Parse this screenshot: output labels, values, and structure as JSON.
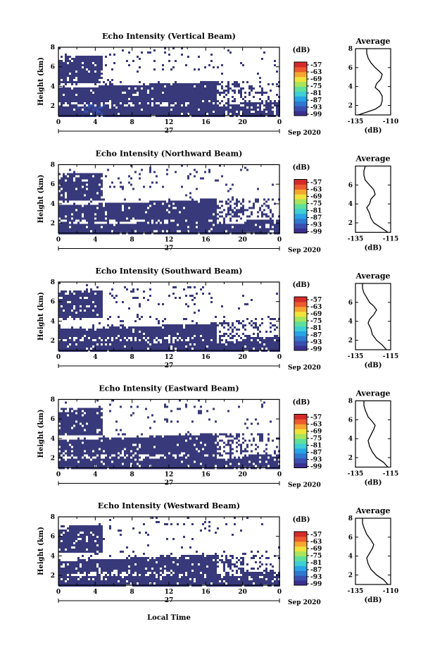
{
  "colors": {
    "echo_fill": "#38397a",
    "colorbar": [
      "#3b2f8f",
      "#3a4fb0",
      "#2f78d0",
      "#27a4e6",
      "#3ecfd4",
      "#5fe09a",
      "#a8e55a",
      "#f1e33a",
      "#f5a62f",
      "#ec5a2d",
      "#d62a2a"
    ]
  },
  "colorbar_unit": "(dB)",
  "colorbar_ticks": [
    "-57",
    "-63",
    "-69",
    "-75",
    "-81",
    "-87",
    "-93",
    "-99"
  ],
  "xaxis": {
    "ticks": [
      "0",
      "4",
      "8",
      "12",
      "16",
      "20",
      "0"
    ],
    "day_label": "27",
    "month_label": "Sep 2020",
    "xlabel": "Local Time"
  },
  "chart_data": [
    {
      "type": "heatmap",
      "title": "Echo Intensity (Vertical Beam)",
      "ylabel": "Height (km)",
      "xlim": [
        0,
        24
      ],
      "ylim": [
        1,
        8
      ],
      "yticks": [
        "8",
        "6",
        "4",
        "2"
      ],
      "month_label": "Sep 2020"
    },
    {
      "type": "line",
      "title": "Average",
      "xlabel": "(dB)",
      "xticks": [
        "-135",
        "-110"
      ],
      "xlim": [
        -135,
        -110
      ],
      "ylim": [
        1,
        8
      ],
      "yticks": [
        "8",
        "6",
        "4",
        "2"
      ],
      "profile": [
        [
          -133,
          1.0
        ],
        [
          -127,
          1.3
        ],
        [
          -121,
          1.6
        ],
        [
          -117,
          2.0
        ],
        [
          -116,
          2.5
        ],
        [
          -116,
          3.0
        ],
        [
          -118,
          3.5
        ],
        [
          -121,
          3.9
        ],
        [
          -120,
          4.3
        ],
        [
          -117,
          4.8
        ],
        [
          -116,
          5.3
        ],
        [
          -118,
          5.6
        ],
        [
          -121,
          6.0
        ],
        [
          -124,
          6.5
        ],
        [
          -126,
          7.0
        ],
        [
          -127,
          7.5
        ],
        [
          -127,
          8.0
        ]
      ]
    },
    {
      "type": "heatmap",
      "title": "Echo Intensity (Northward Beam)",
      "ylabel": "Height (km)",
      "xlim": [
        0,
        24
      ],
      "ylim": [
        1,
        8
      ],
      "yticks": [
        "8",
        "6",
        "4",
        "2"
      ],
      "month_label": "Sep 2020"
    },
    {
      "type": "line",
      "title": "Average",
      "xlabel": "(dB)",
      "xticks": [
        "-135",
        "-115"
      ],
      "xlim": [
        -135,
        -110
      ],
      "ylim": [
        1,
        8
      ],
      "yticks": [
        "6",
        "4",
        "2"
      ],
      "profile": [
        [
          -112,
          1.0
        ],
        [
          -116,
          1.4
        ],
        [
          -122,
          2.0
        ],
        [
          -124,
          2.5
        ],
        [
          -125,
          3.0
        ],
        [
          -127,
          3.6
        ],
        [
          -125,
          4.0
        ],
        [
          -124,
          4.5
        ],
        [
          -121,
          5.0
        ],
        [
          -122,
          5.5
        ],
        [
          -125,
          6.0
        ],
        [
          -128,
          6.5
        ],
        [
          -129,
          7.0
        ],
        [
          -129,
          7.5
        ],
        [
          -128,
          8.0
        ]
      ]
    },
    {
      "type": "heatmap",
      "title": "Echo Intensity (Southward Beam)",
      "ylabel": "Height (km)",
      "xlim": [
        0,
        24
      ],
      "ylim": [
        1,
        8
      ],
      "yticks": [
        "8",
        "6",
        "4",
        "2"
      ],
      "month_label": "Sep 2020"
    },
    {
      "type": "line",
      "title": "Average",
      "xlabel": "(dB)",
      "xticks": [
        "-135",
        "-115"
      ],
      "xlim": [
        -135,
        -110
      ],
      "ylim": [
        1,
        8
      ],
      "yticks": [
        "6",
        "4",
        "2"
      ],
      "profile": [
        [
          -113,
          1.0
        ],
        [
          -116,
          1.5
        ],
        [
          -120,
          2.0
        ],
        [
          -123,
          2.6
        ],
        [
          -124,
          3.2
        ],
        [
          -126,
          3.8
        ],
        [
          -125,
          4.2
        ],
        [
          -122,
          4.7
        ],
        [
          -120,
          5.2
        ],
        [
          -122,
          5.6
        ],
        [
          -125,
          6.0
        ],
        [
          -127,
          6.5
        ],
        [
          -129,
          7.0
        ],
        [
          -130,
          7.5
        ],
        [
          -130,
          8.0
        ]
      ]
    },
    {
      "type": "heatmap",
      "title": "Echo Intensity (Eastward Beam)",
      "ylabel": "Height (km)",
      "xlim": [
        0,
        24
      ],
      "ylim": [
        1,
        8
      ],
      "yticks": [
        "8",
        "6",
        "4",
        "2"
      ],
      "month_label": "Sep 2020"
    },
    {
      "type": "line",
      "title": "Average",
      "xlabel": "(dB)",
      "xticks": [
        "-135",
        "-115"
      ],
      "xlim": [
        -135,
        -110
      ],
      "ylim": [
        1,
        8
      ],
      "yticks": [
        "8",
        "6",
        "4",
        "2"
      ],
      "profile": [
        [
          -112,
          1.0
        ],
        [
          -115,
          1.5
        ],
        [
          -120,
          2.0
        ],
        [
          -123,
          2.6
        ],
        [
          -125,
          3.2
        ],
        [
          -126,
          3.8
        ],
        [
          -124,
          4.4
        ],
        [
          -122,
          5.0
        ],
        [
          -121,
          5.4
        ],
        [
          -123,
          5.8
        ],
        [
          -126,
          6.3
        ],
        [
          -128,
          7.0
        ],
        [
          -129,
          7.5
        ],
        [
          -129,
          8.0
        ]
      ]
    },
    {
      "type": "heatmap",
      "title": "Echo Intensity (Westward Beam)",
      "ylabel": "Height (km)",
      "xlim": [
        0,
        24
      ],
      "ylim": [
        1,
        8
      ],
      "yticks": [
        "8",
        "6",
        "4",
        "2"
      ],
      "month_label": "Sep 2020"
    },
    {
      "type": "line",
      "title": "Average",
      "xlabel": "(dB)",
      "xticks": [
        "-135",
        "-110"
      ],
      "xlim": [
        -135,
        -110
      ],
      "ylim": [
        1,
        8
      ],
      "yticks": [
        "8",
        "6",
        "4",
        "2"
      ],
      "profile": [
        [
          -112,
          1.0
        ],
        [
          -115,
          1.5
        ],
        [
          -120,
          2.0
        ],
        [
          -124,
          2.6
        ],
        [
          -126,
          3.2
        ],
        [
          -127,
          3.8
        ],
        [
          -125,
          4.3
        ],
        [
          -123,
          4.8
        ],
        [
          -122,
          5.2
        ],
        [
          -124,
          5.7
        ],
        [
          -127,
          6.3
        ],
        [
          -129,
          7.0
        ],
        [
          -130,
          7.5
        ],
        [
          -130,
          8.0
        ]
      ]
    }
  ]
}
